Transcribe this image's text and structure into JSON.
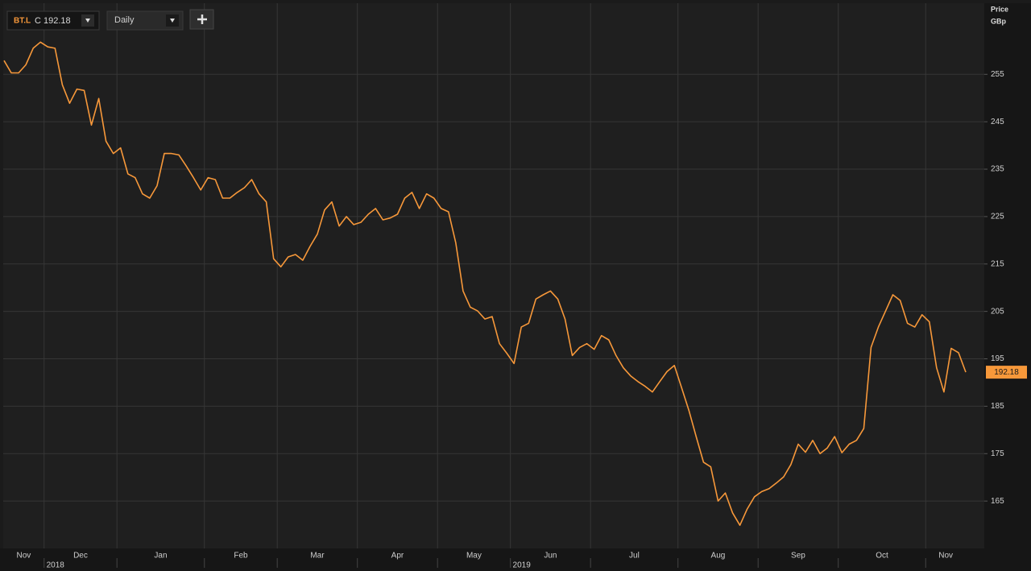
{
  "chart_data": {
    "type": "line",
    "ticker": "BT.L",
    "quote": "C 192.18",
    "interval": "Daily",
    "y_axis_label": "Price",
    "y_axis_unit": "GBp",
    "color": "#f7983a",
    "last_value_label": "192.18",
    "ylim": [
      155,
      270
    ],
    "yticks": [
      165,
      175,
      185,
      195,
      205,
      215,
      225,
      235,
      245,
      255
    ],
    "grid": true,
    "months": [
      {
        "label": "Nov",
        "values": [
          257.9,
          255.3,
          255.3,
          257,
          260.5,
          261.8
        ]
      },
      {
        "label": "Dec",
        "year": "2018",
        "values": [
          260.8,
          260.5,
          252.8,
          248.9,
          251.9,
          251.6,
          244.3,
          249.9,
          240.9,
          238.3
        ]
      },
      {
        "label": "Jan",
        "values": [
          239.5,
          234,
          233.2,
          229.8,
          228.9,
          231.5,
          238.3,
          238.3,
          238,
          235.7,
          233.2,
          230.6
        ]
      },
      {
        "label": "Feb",
        "values": [
          233.2,
          232.8,
          228.9,
          228.9,
          230.1,
          231.1,
          232.8,
          229.8,
          228.1,
          216.1
        ]
      },
      {
        "label": "Mar",
        "values": [
          214.4,
          216.5,
          217,
          215.8,
          218.7,
          221.3,
          226.4,
          228.1,
          223,
          225,
          223.3
        ]
      },
      {
        "label": "Apr",
        "values": [
          223.8,
          225.5,
          226.7,
          224.3,
          224.7,
          225.5,
          228.9,
          230.1,
          226.7,
          229.8,
          228.9
        ]
      },
      {
        "label": "May",
        "values": [
          226.7,
          226,
          219.5,
          209.3,
          205.9,
          205.1,
          203.4,
          203.9,
          198.2,
          196.2
        ]
      },
      {
        "label": "Jun",
        "year": "2019",
        "values": [
          194,
          201.7,
          202.5,
          207.6,
          208.5,
          209.3,
          207.6,
          203.4,
          195.7,
          197.4,
          198.2
        ]
      },
      {
        "label": "Jul",
        "values": [
          197,
          199.9,
          199,
          195.7,
          193.1,
          191.4,
          190.2,
          189.2,
          188,
          190.2,
          192.3,
          193.6
        ]
      },
      {
        "label": "Aug",
        "values": [
          188.9,
          184.1,
          178.6,
          173.2,
          172.2,
          165,
          166.7,
          162.5,
          159.9,
          163.3,
          165.9
        ]
      },
      {
        "label": "Sep",
        "values": [
          167,
          167.6,
          168.8,
          170.1,
          172.7,
          177,
          175.3,
          177.8,
          175,
          176.2,
          178.6
        ]
      },
      {
        "label": "Oct",
        "values": [
          175.2,
          177,
          177.8,
          180.3,
          197.4,
          201.7,
          205.1,
          208.5,
          207.3,
          202.5,
          201.7,
          204.3
        ]
      },
      {
        "label": "Nov",
        "values": [
          202.8,
          193.1,
          188,
          197.2,
          196.3,
          192.18
        ]
      }
    ]
  }
}
